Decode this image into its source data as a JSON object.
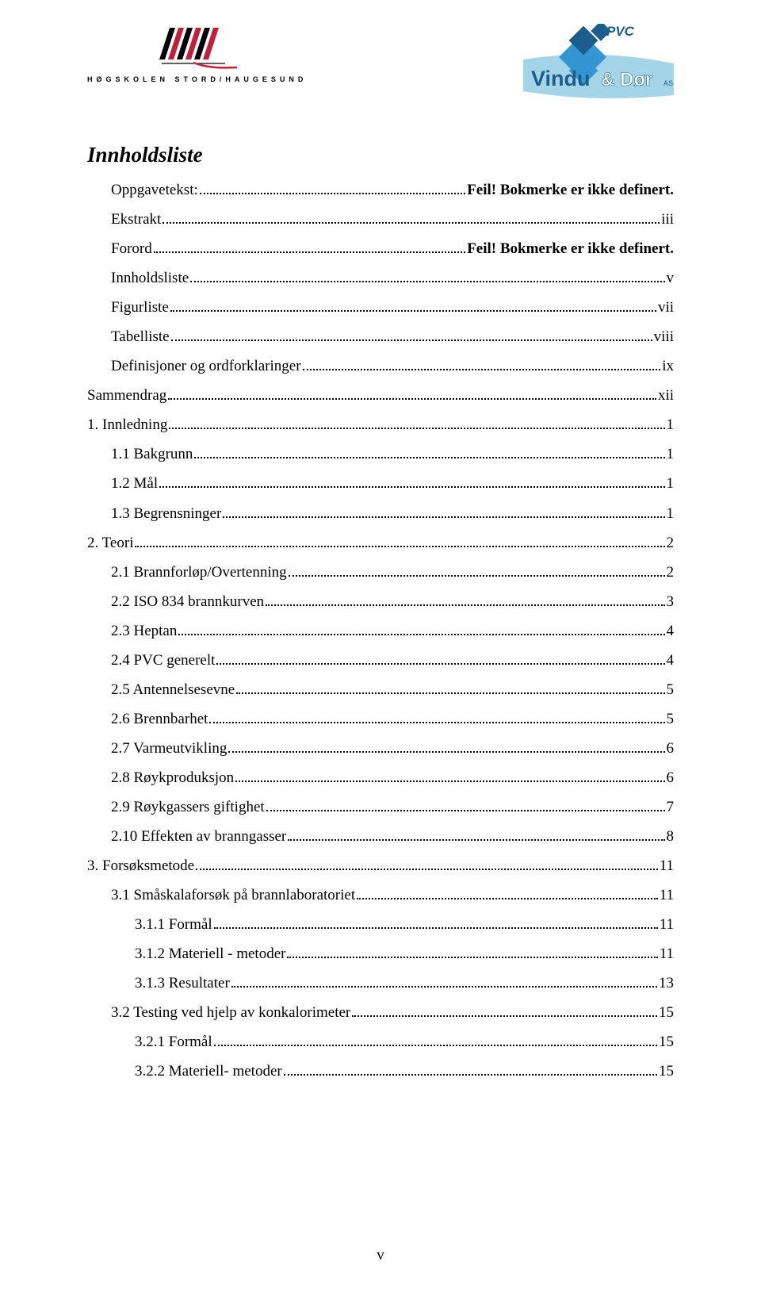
{
  "logo_left_caption": "HØGSKOLEN STORD/HAUGESUND",
  "logo_right_text": "Vindu & Dør",
  "logo_right_pvc": "PVC",
  "logo_right_as": "AS",
  "title": "Innholdsliste",
  "page_number": "v",
  "entries": [
    {
      "label": "Oppgavetekst:",
      "page": "Feil! Bokmerke er ikke definert.",
      "indent": 1,
      "bold_page": true
    },
    {
      "label": "Ekstrakt",
      "page": "iii",
      "indent": 1
    },
    {
      "label": "Forord",
      "page": "Feil! Bokmerke er ikke definert.",
      "indent": 1,
      "bold_page": true
    },
    {
      "label": "Innholdsliste",
      "page": "v",
      "indent": 1
    },
    {
      "label": "Figurliste",
      "page": "vii",
      "indent": 1
    },
    {
      "label": "Tabelliste",
      "page": "viii",
      "indent": 1
    },
    {
      "label": "Definisjoner og ordforklaringer",
      "page": "ix",
      "indent": 1
    },
    {
      "label": "Sammendrag",
      "page": "xii",
      "indent": 0
    },
    {
      "label": "1. Innledning",
      "page": "1",
      "indent": 0
    },
    {
      "label": "1.1 Bakgrunn",
      "page": "1",
      "indent": 1
    },
    {
      "label": "1.2 Mål",
      "page": "1",
      "indent": 1
    },
    {
      "label": "1.3 Begrensninger",
      "page": "1",
      "indent": 1
    },
    {
      "label": "2. Teori",
      "page": "2",
      "indent": 0
    },
    {
      "label": "2.1 Brannforløp/Overtenning",
      "page": "2",
      "indent": 1
    },
    {
      "label": "2.2 ISO 834 brannkurven",
      "page": "3",
      "indent": 1
    },
    {
      "label": "2.3 Heptan",
      "page": "4",
      "indent": 1
    },
    {
      "label": "2.4 PVC generelt",
      "page": "4",
      "indent": 1
    },
    {
      "label": "2.5 Antennelsesevne",
      "page": "5",
      "indent": 1
    },
    {
      "label": "2.6 Brennbarhet",
      "page": "5",
      "indent": 1
    },
    {
      "label": "2.7 Varmeutvikling",
      "page": "6",
      "indent": 1
    },
    {
      "label": "2.8 Røykproduksjon",
      "page": "6",
      "indent": 1
    },
    {
      "label": "2.9 Røykgassers giftighet",
      "page": "7",
      "indent": 1
    },
    {
      "label": "2.10 Effekten av branngasser",
      "page": "8",
      "indent": 1
    },
    {
      "label": "3. Forsøksmetode",
      "page": "11",
      "indent": 0
    },
    {
      "label": "3.1 Småskalaforsøk på brannlaboratoriet",
      "page": "11",
      "indent": 1
    },
    {
      "label": "3.1.1 Formål",
      "page": "11",
      "indent": 2
    },
    {
      "label": "3.1.2 Materiell - metoder",
      "page": "11",
      "indent": 2
    },
    {
      "label": "3.1.3 Resultater",
      "page": "13",
      "indent": 2
    },
    {
      "label": "3.2 Testing ved hjelp av konkalorimeter",
      "page": "15",
      "indent": 1
    },
    {
      "label": "3.2.1 Formål",
      "page": "15",
      "indent": 2
    },
    {
      "label": "3.2.2 Materiell- metoder",
      "page": "15",
      "indent": 2
    }
  ]
}
